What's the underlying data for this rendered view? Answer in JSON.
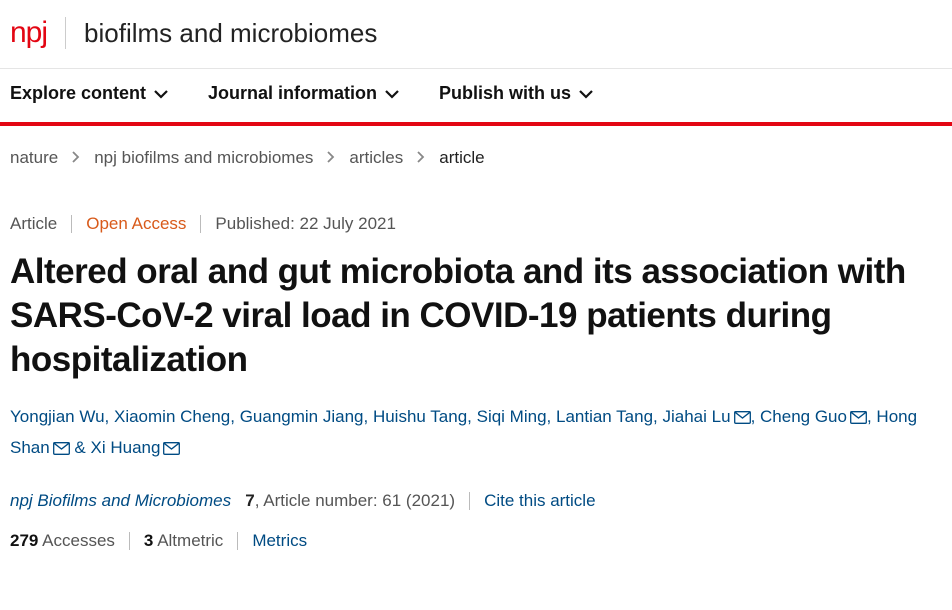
{
  "header": {
    "logo_text": "npj",
    "journal_name": "biofilms and microbiomes"
  },
  "nav": {
    "items": [
      {
        "label": "Explore content"
      },
      {
        "label": "Journal information"
      },
      {
        "label": "Publish with us"
      }
    ]
  },
  "breadcrumb": {
    "items": [
      "nature",
      "npj biofilms and microbiomes",
      "articles"
    ],
    "current": "article"
  },
  "meta": {
    "article_type": "Article",
    "open_access": "Open Access",
    "published_prefix": "Published:",
    "published_date": "22 July 2021"
  },
  "title": "Altered oral and gut microbiota and its association with SARS-CoV-2 viral load in COVID-19 patients during hospitalization",
  "authors": [
    {
      "name": "Yongjian Wu",
      "corresponding": false
    },
    {
      "name": "Xiaomin Cheng",
      "corresponding": false
    },
    {
      "name": "Guangmin Jiang",
      "corresponding": false
    },
    {
      "name": "Huishu Tang",
      "corresponding": false
    },
    {
      "name": "Siqi Ming",
      "corresponding": false
    },
    {
      "name": "Lantian Tang",
      "corresponding": false
    },
    {
      "name": "Jiahai Lu",
      "corresponding": true
    },
    {
      "name": "Cheng Guo",
      "corresponding": true
    },
    {
      "name": "Hong Shan",
      "corresponding": true
    },
    {
      "name": "Xi Huang",
      "corresponding": true
    }
  ],
  "citation": {
    "journal": "npj Biofilms and Microbiomes",
    "volume": "7",
    "article_number_label": ", Article number: 61 (2021)",
    "cite_link": "Cite this article"
  },
  "metrics": {
    "accesses_count": "279",
    "accesses_label": "Accesses",
    "altmetric_count": "3",
    "altmetric_label": "Altmetric",
    "metrics_link": "Metrics"
  },
  "colors": {
    "brand_red": "#e30613",
    "open_access_orange": "#d85a1a",
    "link_blue": "#004b83",
    "text_dark": "#111111",
    "text_muted": "#555555"
  }
}
